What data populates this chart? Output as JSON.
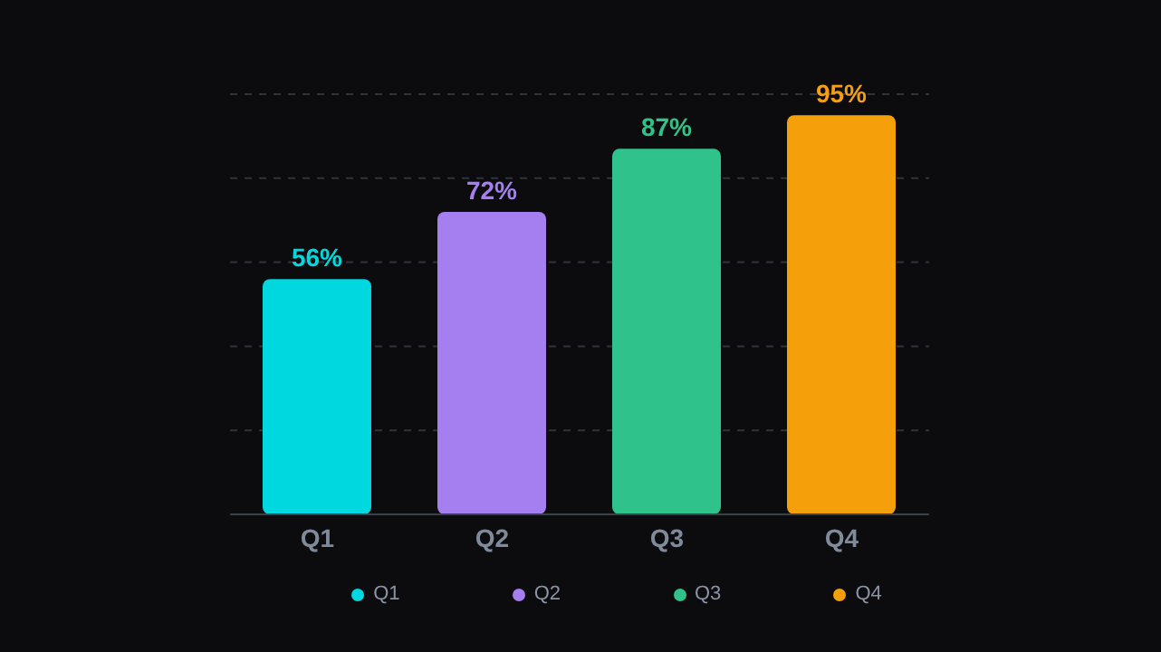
{
  "chart_data": {
    "type": "bar",
    "categories": [
      "Q1",
      "Q2",
      "Q3",
      "Q4"
    ],
    "values": [
      56,
      72,
      87,
      95
    ],
    "value_labels": [
      "56%",
      "72%",
      "87%",
      "95%"
    ],
    "colors": [
      "#00d8e0",
      "#a57ff0",
      "#2fc28a",
      "#f5a00a"
    ],
    "ylim": [
      0,
      100
    ],
    "yticks": [
      {
        "value": 0,
        "label": null
      },
      {
        "value": 20,
        "label": null
      },
      {
        "value": 40,
        "label": null
      },
      {
        "value": 60,
        "label": null
      },
      {
        "value": 80,
        "label": null
      },
      {
        "value": 100,
        "label": null
      }
    ],
    "grid": "y",
    "tick_labels": "x"
  }
}
